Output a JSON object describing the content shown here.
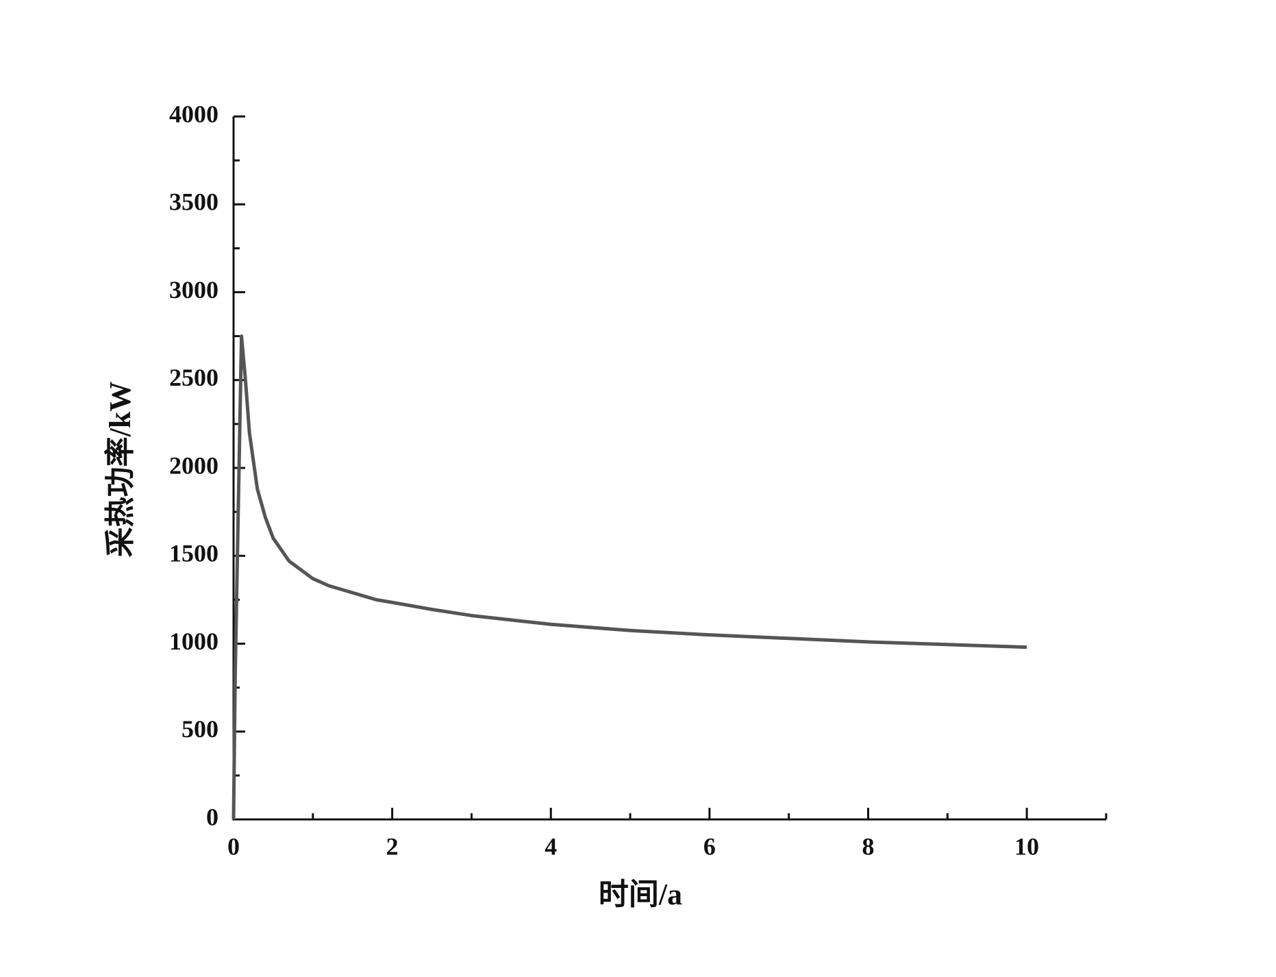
{
  "chart_data": {
    "type": "line",
    "x_label": "时间/a",
    "y_label": "采热功率/kW",
    "series": [
      {
        "color": "#555555",
        "x": [
          0,
          0.02,
          0.1,
          0.15,
          0.2,
          0.3,
          0.4,
          0.5,
          0.7,
          1,
          1.2,
          1.5,
          1.8,
          2,
          2.5,
          3,
          3.5,
          4,
          5,
          6,
          7,
          8,
          9,
          10
        ],
        "values": [
          0,
          800,
          2750,
          2500,
          2200,
          1880,
          1720,
          1600,
          1470,
          1370,
          1330,
          1290,
          1250,
          1235,
          1195,
          1160,
          1135,
          1110,
          1075,
          1050,
          1030,
          1010,
          995,
          980
        ]
      }
    ],
    "xlim": [
      0,
      11
    ],
    "xticks": [
      0,
      2,
      4,
      6,
      8,
      10
    ],
    "x_minor_ticks": [
      1,
      3,
      5,
      7,
      9,
      11
    ],
    "ylim": [
      0,
      4000
    ],
    "yticks": [
      0,
      500,
      1000,
      1500,
      2000,
      2500,
      3000,
      3500,
      4000
    ],
    "y_minor_ticks": [
      250,
      750,
      1250,
      1750,
      2250,
      2750,
      3250,
      3750
    ],
    "grid": false
  }
}
